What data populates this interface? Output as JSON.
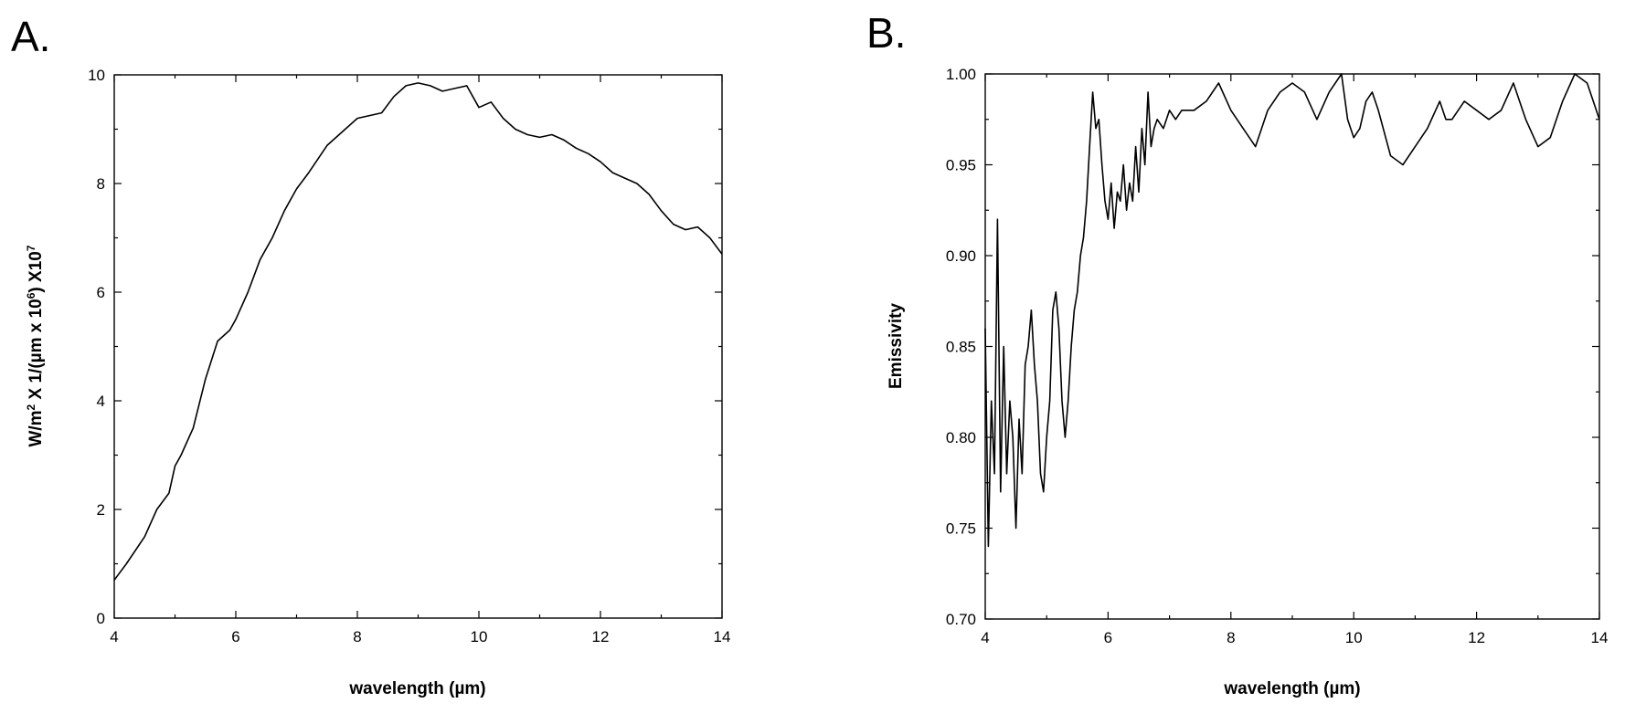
{
  "chart_data": [
    {
      "type": "line",
      "panel_label": "A.",
      "title": "",
      "xlabel": "wavelength (µm)",
      "ylabel_parts": [
        "W/m",
        "2",
        " X 1/(µm x 10",
        "6",
        ")  X10",
        "7"
      ],
      "xlim": [
        4,
        14
      ],
      "ylim": [
        0,
        10
      ],
      "xticks": [
        4,
        6,
        8,
        10,
        12,
        14
      ],
      "yticks": [
        0,
        2,
        4,
        6,
        8,
        10
      ],
      "grid": false,
      "series": [
        {
          "x": [
            4.0,
            4.2,
            4.5,
            4.7,
            4.9,
            5.0,
            5.1,
            5.3,
            5.5,
            5.7,
            5.9,
            6.0,
            6.2,
            6.4,
            6.6,
            6.8,
            7.0,
            7.2,
            7.5,
            7.8,
            8.0,
            8.2,
            8.4,
            8.6,
            8.8,
            9.0,
            9.2,
            9.4,
            9.6,
            9.8,
            10.0,
            10.2,
            10.4,
            10.6,
            10.8,
            11.0,
            11.2,
            11.4,
            11.6,
            11.8,
            12.0,
            12.2,
            12.4,
            12.6,
            12.8,
            13.0,
            13.2,
            13.4,
            13.6,
            13.8,
            14.0
          ],
          "y": [
            0.7,
            1.0,
            1.5,
            2.0,
            2.3,
            2.8,
            3.0,
            3.5,
            4.4,
            5.1,
            5.3,
            5.5,
            6.0,
            6.6,
            7.0,
            7.5,
            7.9,
            8.2,
            8.7,
            9.0,
            9.2,
            9.25,
            9.3,
            9.6,
            9.8,
            9.85,
            9.8,
            9.7,
            9.75,
            9.8,
            9.4,
            9.5,
            9.2,
            9.0,
            8.9,
            8.85,
            8.9,
            8.8,
            8.65,
            8.55,
            8.4,
            8.2,
            8.1,
            8.0,
            7.8,
            7.5,
            7.25,
            7.15,
            7.2,
            7.0,
            6.7
          ]
        }
      ]
    },
    {
      "type": "line",
      "panel_label": "B.",
      "title": "",
      "xlabel": "wavelength (µm)",
      "ylabel": "Emissivity",
      "xlim": [
        4,
        14
      ],
      "ylim": [
        0.7,
        1.0
      ],
      "xticks": [
        4,
        6,
        8,
        10,
        12,
        14
      ],
      "yticks": [
        "0.70",
        "0.75",
        "0.80",
        "0.85",
        "0.90",
        "0.95",
        "1.00"
      ],
      "grid": false,
      "series": [
        {
          "x": [
            4.0,
            4.05,
            4.1,
            4.15,
            4.2,
            4.25,
            4.3,
            4.35,
            4.4,
            4.45,
            4.5,
            4.55,
            4.6,
            4.65,
            4.7,
            4.75,
            4.8,
            4.85,
            4.9,
            4.95,
            5.0,
            5.05,
            5.1,
            5.15,
            5.2,
            5.25,
            5.3,
            5.35,
            5.4,
            5.45,
            5.5,
            5.55,
            5.6,
            5.65,
            5.7,
            5.75,
            5.8,
            5.85,
            5.9,
            5.95,
            6.0,
            6.05,
            6.1,
            6.15,
            6.2,
            6.25,
            6.3,
            6.35,
            6.4,
            6.45,
            6.5,
            6.55,
            6.6,
            6.65,
            6.7,
            6.75,
            6.8,
            6.9,
            7.0,
            7.1,
            7.2,
            7.4,
            7.6,
            7.8,
            8.0,
            8.2,
            8.4,
            8.6,
            8.8,
            9.0,
            9.2,
            9.4,
            9.6,
            9.8,
            9.9,
            10.0,
            10.1,
            10.2,
            10.3,
            10.4,
            10.6,
            10.8,
            11.0,
            11.2,
            11.4,
            11.5,
            11.6,
            11.8,
            12.0,
            12.2,
            12.4,
            12.6,
            12.8,
            13.0,
            13.2,
            13.4,
            13.6,
            13.8,
            14.0
          ],
          "y": [
            0.86,
            0.74,
            0.82,
            0.78,
            0.92,
            0.77,
            0.85,
            0.78,
            0.82,
            0.8,
            0.75,
            0.81,
            0.78,
            0.84,
            0.85,
            0.87,
            0.84,
            0.82,
            0.78,
            0.77,
            0.8,
            0.82,
            0.87,
            0.88,
            0.86,
            0.82,
            0.8,
            0.82,
            0.85,
            0.87,
            0.88,
            0.9,
            0.91,
            0.93,
            0.96,
            0.99,
            0.97,
            0.975,
            0.95,
            0.93,
            0.92,
            0.94,
            0.915,
            0.935,
            0.93,
            0.95,
            0.925,
            0.94,
            0.93,
            0.96,
            0.935,
            0.97,
            0.95,
            0.99,
            0.96,
            0.97,
            0.975,
            0.97,
            0.98,
            0.975,
            0.98,
            0.98,
            0.985,
            0.995,
            0.98,
            0.97,
            0.96,
            0.98,
            0.99,
            0.995,
            0.99,
            0.975,
            0.99,
            1.0,
            0.975,
            0.965,
            0.97,
            0.985,
            0.99,
            0.98,
            0.955,
            0.95,
            0.96,
            0.97,
            0.985,
            0.975,
            0.975,
            0.985,
            0.98,
            0.975,
            0.98,
            0.995,
            0.975,
            0.96,
            0.965,
            0.985,
            1.0,
            0.995,
            0.975
          ]
        }
      ]
    }
  ]
}
